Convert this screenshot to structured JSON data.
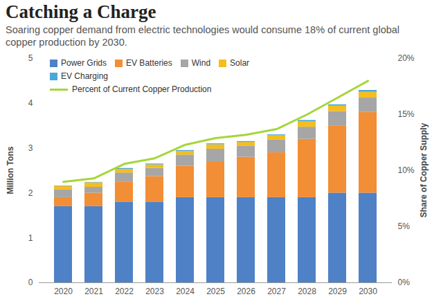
{
  "chart_data": {
    "type": "bar",
    "title": "Catching a Charge",
    "subtitle": "Soaring copper demand from electric technologies would consume 18% of current global copper production by 2030.",
    "categories": [
      "2020",
      "2021",
      "2022",
      "2023",
      "2024",
      "2025",
      "2026",
      "2027",
      "2028",
      "2029",
      "2030"
    ],
    "series": [
      {
        "name": "Power Grids",
        "color": "#4f81c7",
        "values": [
          1.7,
          1.7,
          1.8,
          1.8,
          1.9,
          1.9,
          1.9,
          1.9,
          1.9,
          2.0,
          2.0
        ]
      },
      {
        "name": "EV Batteries",
        "color": "#f28e35",
        "values": [
          0.2,
          0.3,
          0.45,
          0.57,
          0.7,
          0.8,
          0.9,
          1.0,
          1.3,
          1.5,
          1.8
        ]
      },
      {
        "name": "Wind",
        "color": "#a6a6a6",
        "values": [
          0.17,
          0.13,
          0.2,
          0.18,
          0.25,
          0.28,
          0.25,
          0.28,
          0.27,
          0.32,
          0.32
        ]
      },
      {
        "name": "Solar",
        "color": "#f5bd1e",
        "values": [
          0.08,
          0.1,
          0.08,
          0.08,
          0.08,
          0.1,
          0.08,
          0.1,
          0.12,
          0.12,
          0.13
        ]
      },
      {
        "name": "EV Charging",
        "color": "#47a9d8",
        "values": [
          0.01,
          0.01,
          0.02,
          0.02,
          0.02,
          0.02,
          0.02,
          0.02,
          0.03,
          0.03,
          0.04
        ]
      },
      {
        "name": "Percent of Current Copper Production",
        "type": "line",
        "axis": "y2",
        "color": "#a5d63b",
        "values": [
          9,
          9.3,
          10.6,
          11.1,
          12.3,
          12.9,
          13.2,
          13.7,
          15,
          16.5,
          18
        ]
      }
    ],
    "stacked": true,
    "ylabel": "Million Tons",
    "ylim": [
      0,
      5
    ],
    "yticks": [
      0,
      1,
      2,
      3,
      4,
      5
    ],
    "y2label": "Share of Copper Supply",
    "y2lim": [
      0,
      20
    ],
    "y2ticks": [
      {
        "value": 0,
        "label": "0%"
      },
      {
        "value": 5,
        "label": "5%"
      },
      {
        "value": 10,
        "label": "10%"
      },
      {
        "value": 15,
        "label": "15%"
      },
      {
        "value": 20,
        "label": "20%"
      }
    ],
    "legend": "upper left",
    "grid": false
  }
}
